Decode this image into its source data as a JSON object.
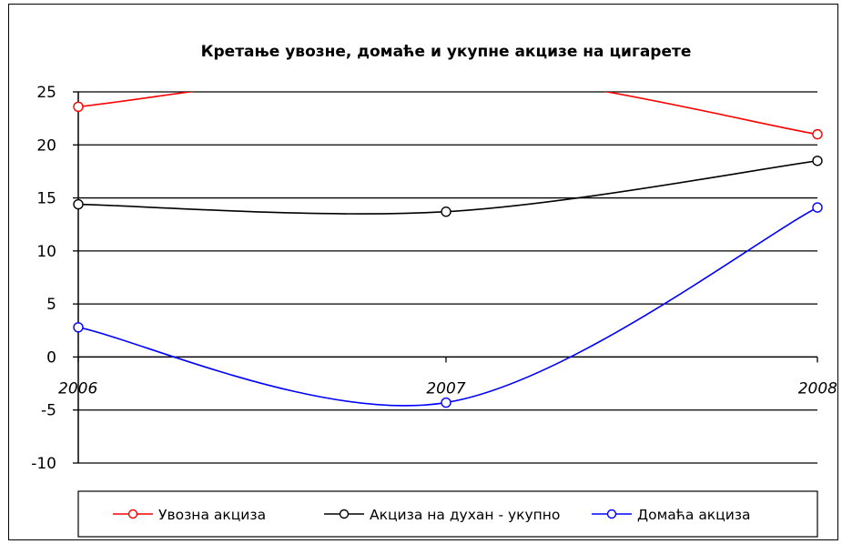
{
  "chart_data": {
    "type": "line",
    "title": "Кретање увозне, домаће и укупне акцизе на цигарете",
    "x": [
      "2006",
      "2007",
      "2008"
    ],
    "ylim": [
      -10,
      25
    ],
    "yticks": [
      -10,
      -5,
      0,
      5,
      10,
      15,
      20,
      25
    ],
    "grid": true,
    "smooth": true,
    "legend_position": "bottom",
    "series": [
      {
        "name": "Увозна акциза",
        "values": [
          23.6,
          26.9,
          21.0
        ],
        "color": "#ff0000"
      },
      {
        "name": "Акциза на духан - укупно",
        "values": [
          14.4,
          13.7,
          18.5
        ],
        "color": "#000000"
      },
      {
        "name": "Домаћа акциза",
        "values": [
          2.8,
          -4.3,
          14.1
        ],
        "color": "#0000ff"
      }
    ]
  }
}
